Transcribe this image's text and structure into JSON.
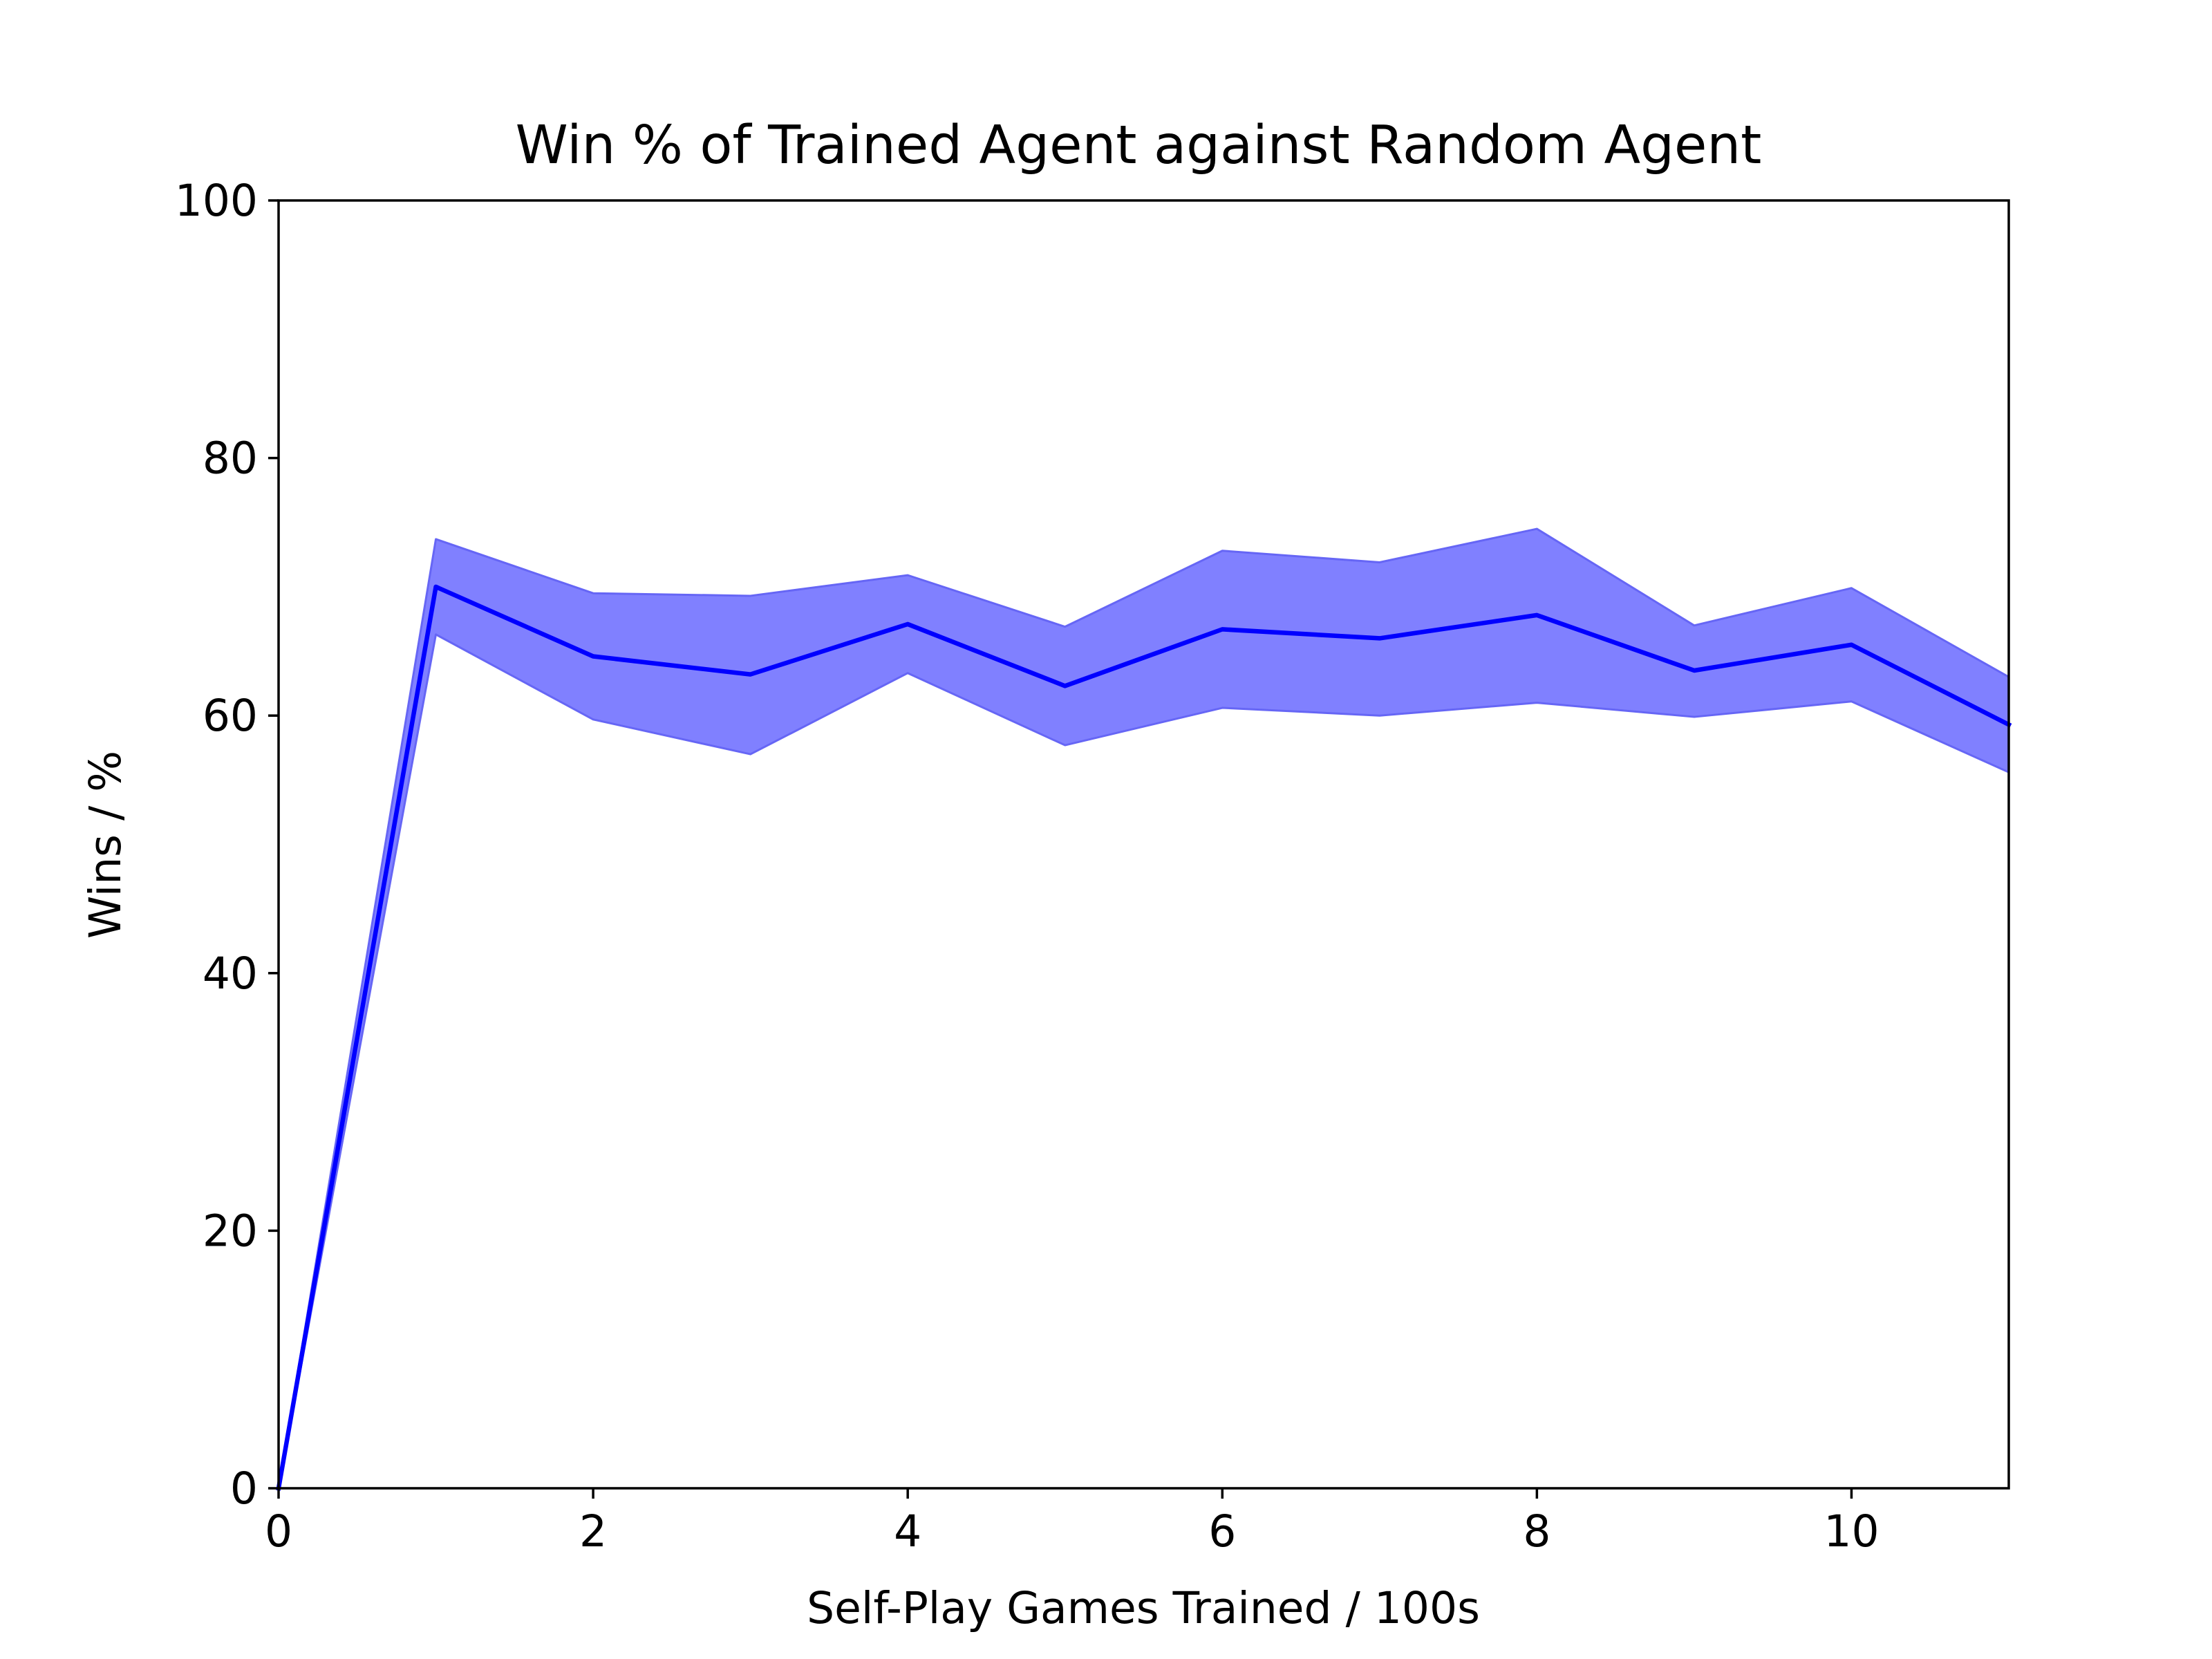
{
  "chart_data": {
    "type": "area",
    "title": "Win % of Trained Agent against Random Agent",
    "xlabel": "Self-Play Games Trained / 100s",
    "ylabel": "Wins / %",
    "xlim": [
      0,
      11
    ],
    "ylim": [
      0,
      100
    ],
    "x_ticks": [
      0,
      2,
      4,
      6,
      8,
      10
    ],
    "y_ticks": [
      0,
      20,
      40,
      60,
      80,
      100
    ],
    "x_tick_labels": [
      "0",
      "2",
      "4",
      "6",
      "8",
      "10"
    ],
    "y_tick_labels": [
      "0",
      "20",
      "40",
      "60",
      "80",
      "100"
    ],
    "grid": false,
    "legend": false,
    "x": [
      0,
      1,
      2,
      3,
      4,
      5,
      6,
      7,
      8,
      9,
      10,
      11
    ],
    "series": [
      {
        "values": [
          0,
          70.0,
          64.6,
          63.2,
          67.1,
          62.3,
          66.7,
          66.0,
          67.8,
          63.5,
          65.5,
          59.3
        ],
        "upper": [
          0,
          73.7,
          69.5,
          69.3,
          70.9,
          66.9,
          72.8,
          71.9,
          74.5,
          67.0,
          69.9,
          63.0
        ],
        "lower": [
          0,
          66.3,
          59.7,
          57.0,
          63.3,
          57.7,
          60.6,
          60.0,
          61.0,
          59.9,
          61.1,
          55.6
        ],
        "line_color": "#0000ff",
        "fill_color": "#8080ff",
        "fill_edge_color": "#6666f5"
      }
    ]
  }
}
